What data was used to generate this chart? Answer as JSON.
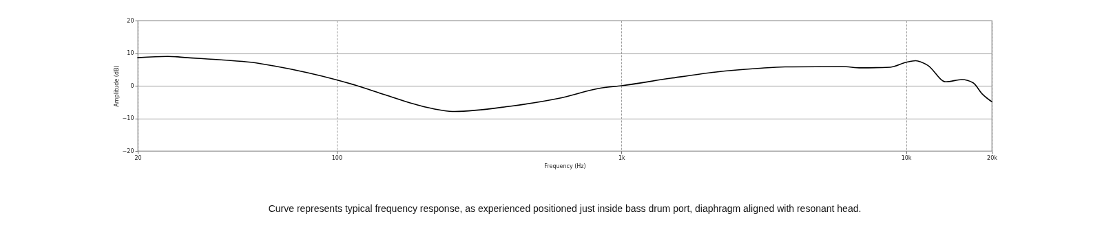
{
  "chart_data": {
    "type": "line",
    "xlabel": "Frequency (Hz)",
    "ylabel": "Amplitude (dB)",
    "annotations": [
      "Curve represents typical frequency response, as experienced positioned just inside bass drum port, diaphragm aligned with resonant head."
    ],
    "x": [
      20,
      25.5,
      30,
      40,
      50,
      60,
      79,
      100,
      117,
      148,
      200,
      260,
      405,
      600,
      850,
      1000,
      1490,
      2150,
      3000,
      3760,
      3970,
      5970,
      6930,
      8810,
      10000,
      10800,
      11900,
      13800,
      15700,
      17200,
      18500,
      20000
    ],
    "series": [
      {
        "color": "#000000",
        "values": [
          8.6,
          9.0,
          8.6,
          7.9,
          7.2,
          6.1,
          4.0,
          1.8,
          0.1,
          -2.8,
          -6.3,
          -7.9,
          -6.3,
          -3.9,
          -0.7,
          0,
          2.3,
          4.2,
          5.3,
          5.8,
          5.8,
          5.9,
          5.5,
          5.7,
          7.2,
          7.7,
          6.3,
          1.2,
          1.9,
          0.9,
          -2.5,
          -4.9
        ]
      }
    ],
    "xlim": [
      20,
      20000
    ],
    "xticks": [
      20,
      100,
      {
        "value": 1000,
        "label": "1k"
      },
      {
        "value": 10000,
        "label": "10k"
      },
      {
        "value": 20000,
        "label": "20k"
      }
    ],
    "ylim": [
      -20,
      20
    ],
    "yticks": [
      -20,
      -10,
      0,
      10,
      20
    ],
    "log": "x",
    "grid": true,
    "line_style": "solid",
    "marker": "none"
  }
}
